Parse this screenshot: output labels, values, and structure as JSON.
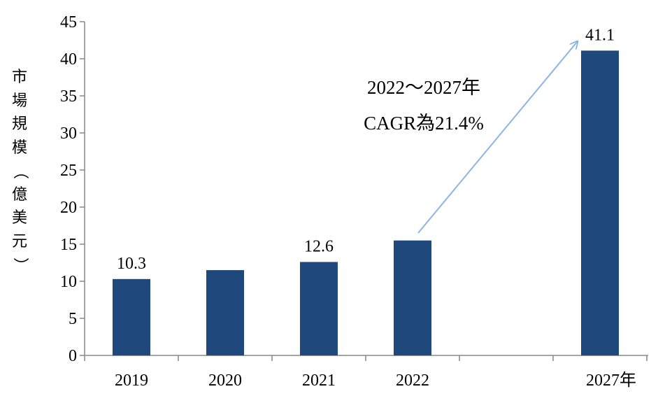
{
  "chart_data": {
    "type": "bar",
    "categories": [
      "2019",
      "2020",
      "2021",
      "2022",
      "2027年"
    ],
    "values": [
      10.3,
      11.5,
      12.6,
      15.5,
      41.1
    ],
    "data_labels": [
      "10.3",
      "",
      "12.6",
      "",
      "41.1"
    ],
    "ylabel": "市場規模（億美元）",
    "ylim": [
      0,
      45
    ],
    "yticks": [
      "0",
      "5",
      "10",
      "15",
      "20",
      "25",
      "30",
      "35",
      "40",
      "45"
    ],
    "bar_color": "#1F497D",
    "arrow_color": "#8DB4E2",
    "grid": false,
    "annotation_line1": "2022～2027年",
    "annotation_line2": "CAGR為21.4%"
  }
}
